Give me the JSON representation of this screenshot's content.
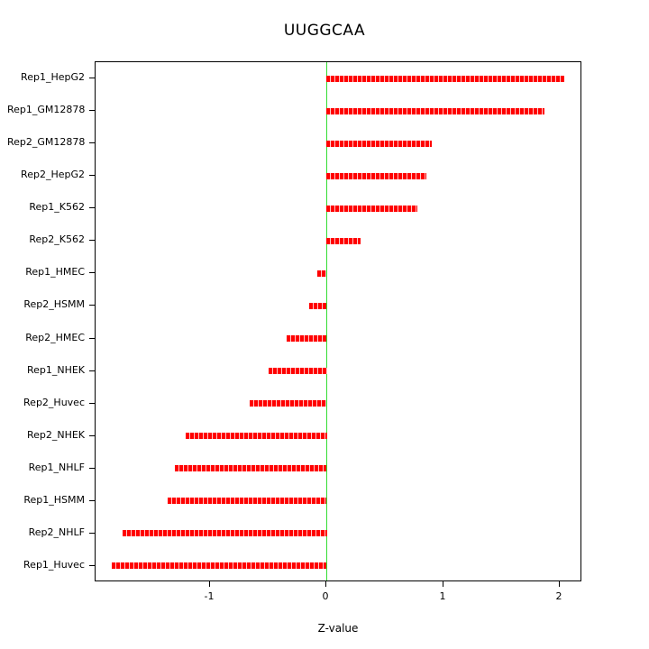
{
  "chart_data": {
    "type": "bar",
    "orientation": "horizontal",
    "title": "UUGGCAA",
    "xlabel": "Z-value",
    "ylabel": "",
    "categories": [
      "Rep1_HepG2",
      "Rep1_GM12878",
      "Rep2_GM12878",
      "Rep2_HepG2",
      "Rep1_K562",
      "Rep2_K562",
      "Rep1_HMEC",
      "Rep2_HSMM",
      "Rep2_HMEC",
      "Rep1_NHEK",
      "Rep2_Huvec",
      "Rep2_NHEK",
      "Rep1_NHLF",
      "Rep1_HSMM",
      "Rep2_NHLF",
      "Rep1_Huvec"
    ],
    "values": [
      2.04,
      1.87,
      0.9,
      0.86,
      0.78,
      0.29,
      -0.08,
      -0.15,
      -0.34,
      -0.5,
      -0.66,
      -1.21,
      -1.3,
      -1.36,
      -1.75,
      -1.84
    ],
    "xlim": [
      -1.98,
      2.19
    ],
    "xticks": [
      -1,
      0,
      1,
      2
    ],
    "xtick_labels": [
      "-1",
      "0",
      "1",
      "2"
    ],
    "bar_color": "#ff0000",
    "bar_gap_color": "#ffc9c9",
    "zero_line_color": "#33dd33",
    "grid": false,
    "legend": "none"
  }
}
